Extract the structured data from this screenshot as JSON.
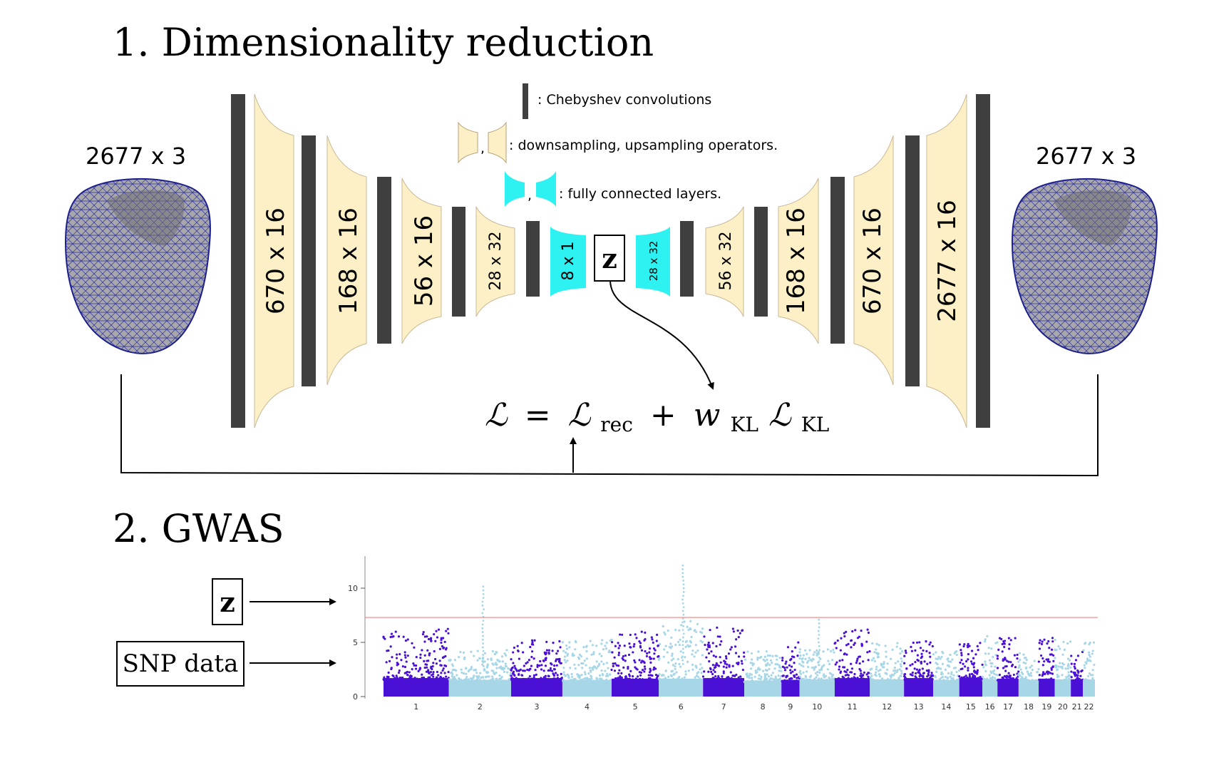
{
  "section1": {
    "title": "1. Dimensionality reduction"
  },
  "section2": {
    "title": "2. GWAS"
  },
  "input_mesh": {
    "label": "2677 x 3"
  },
  "output_mesh": {
    "label": "2677 x 3"
  },
  "legend": {
    "conv": ": Chebyshev convolutions",
    "sampling": ": downsampling, upsampling operators.",
    "fc": ": fully connected layers.",
    "sep": ","
  },
  "encoder_layers": [
    "670 x 16",
    "168 x 16",
    "56 x 16",
    "28 x 32"
  ],
  "bottleneck": "8 x 1",
  "latent": "z",
  "decoder_fc": "28 x 32",
  "decoder_layers": [
    "56 x 32",
    "168 x 16",
    "670 x 16",
    "2677 x 16"
  ],
  "loss": {
    "L": "ℒ",
    "eq": "=",
    "rec_sub": "rec",
    "plus": "+",
    "w": "w",
    "kl_sub": "KL"
  },
  "gwas_inputs": {
    "z": "z",
    "snp": "SNP data"
  },
  "colors": {
    "conv": "#3f3f3f",
    "sampling": "#fdf0c6",
    "fc": "#2ef2f2",
    "snp_dark": "#4b10d6",
    "snp_light": "#a7d6e6",
    "threshold": "#f08080"
  },
  "chart_data": {
    "type": "scatter",
    "subtype": "manhattan",
    "title": "",
    "xlabel": "",
    "ylabel": "",
    "ylim": [
      0,
      13
    ],
    "yticks": [
      0,
      5,
      10
    ],
    "threshold": 7.3,
    "chromosomes": [
      {
        "label": "1",
        "base": 3.1,
        "max": 6.3,
        "peak": null,
        "color": "dark"
      },
      {
        "label": "2",
        "base": 2.8,
        "max": 4.3,
        "peak": 10.4,
        "color": "light"
      },
      {
        "label": "3",
        "base": 3.1,
        "max": 5.3,
        "peak": null,
        "color": "dark"
      },
      {
        "label": "4",
        "base": 2.8,
        "max": 5.3,
        "peak": null,
        "color": "light"
      },
      {
        "label": "5",
        "base": 3.0,
        "max": 6.1,
        "peak": null,
        "color": "dark"
      },
      {
        "label": "6",
        "base": 3.0,
        "max": 7.2,
        "peak": 12.1,
        "color": "light"
      },
      {
        "label": "7",
        "base": 3.1,
        "max": 6.4,
        "peak": null,
        "color": "dark"
      },
      {
        "label": "8",
        "base": 2.7,
        "max": 4.2,
        "peak": null,
        "color": "light"
      },
      {
        "label": "9",
        "base": 2.8,
        "max": 5.0,
        "peak": null,
        "color": "dark"
      },
      {
        "label": "10",
        "base": 2.9,
        "max": 4.5,
        "peak": 7.4,
        "color": "light"
      },
      {
        "label": "11",
        "base": 3.1,
        "max": 6.4,
        "peak": null,
        "color": "dark"
      },
      {
        "label": "12",
        "base": 2.9,
        "max": 5.1,
        "peak": null,
        "color": "light"
      },
      {
        "label": "13",
        "base": 3.1,
        "max": 5.1,
        "peak": null,
        "color": "dark"
      },
      {
        "label": "14",
        "base": 2.8,
        "max": 4.2,
        "peak": null,
        "color": "light"
      },
      {
        "label": "15",
        "base": 3.2,
        "max": 5.1,
        "peak": null,
        "color": "dark"
      },
      {
        "label": "16",
        "base": 2.9,
        "max": 5.6,
        "peak": null,
        "color": "light"
      },
      {
        "label": "17",
        "base": 3.0,
        "max": 5.4,
        "peak": null,
        "color": "dark"
      },
      {
        "label": "18",
        "base": 2.8,
        "max": 4.0,
        "peak": null,
        "color": "light"
      },
      {
        "label": "19",
        "base": 3.0,
        "max": 5.6,
        "peak": null,
        "color": "dark"
      },
      {
        "label": "20",
        "base": 2.9,
        "max": 5.3,
        "peak": null,
        "color": "light"
      },
      {
        "label": "21",
        "base": 2.9,
        "max": 4.2,
        "peak": null,
        "color": "dark"
      },
      {
        "label": "22",
        "base": 2.9,
        "max": 5.0,
        "peak": null,
        "color": "light"
      }
    ]
  }
}
